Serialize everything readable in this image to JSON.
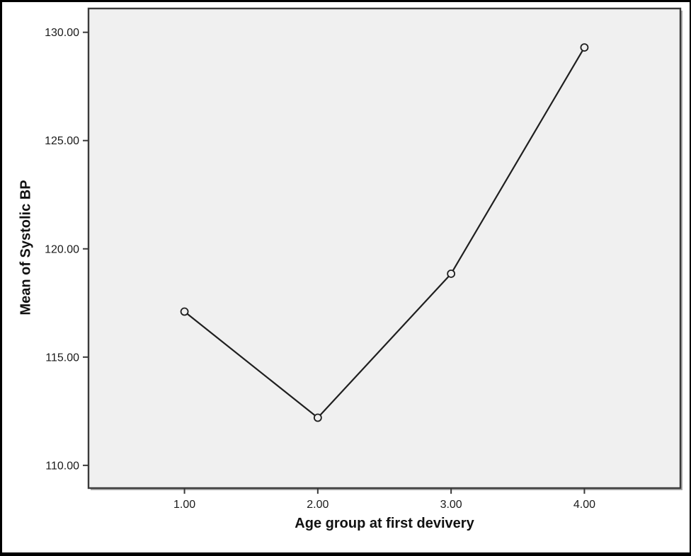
{
  "chart_data": {
    "type": "line",
    "title": "",
    "xlabel": "Age group at first devivery",
    "ylabel": "Mean of Systolic BP",
    "x": [
      1.0,
      2.0,
      3.0,
      4.0
    ],
    "x_tick_labels": [
      "1.00",
      "2.00",
      "3.00",
      "4.00"
    ],
    "series": [
      {
        "name": "Mean of Systolic BP",
        "values": [
          117.1,
          112.2,
          118.85,
          129.3
        ]
      }
    ],
    "y_tick_values": [
      110,
      115,
      120,
      125,
      130
    ],
    "y_tick_labels": [
      "110.00",
      "115.00",
      "120.00",
      "125.00",
      "130.00"
    ],
    "xlim": [
      0.28,
      4.72
    ],
    "ylim": [
      108.95,
      131.1
    ],
    "grid": false,
    "legend": "none",
    "marker": "open-circle",
    "colors": {
      "plot_bg": "#f0f0f0",
      "plot_border": "#3a3a3a",
      "shadow": "#aaaaaa",
      "line": "#1f1f1f",
      "marker_stroke": "#1f1f1f",
      "text": "#1a1a1a",
      "frame": "#000000"
    }
  }
}
